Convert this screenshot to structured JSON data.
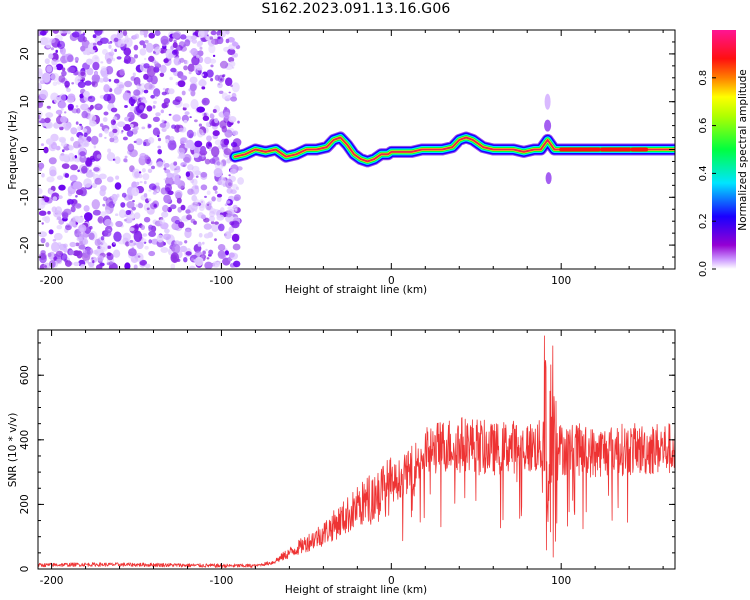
{
  "figure_title": "S162.2023.091.13.16.G06",
  "colors": {
    "snr_line": "#ee3333",
    "ridge_core": "#e8294a",
    "noise": "#8a2be2",
    "axis": "#000000"
  },
  "chart_data": [
    {
      "type": "heatmap",
      "title": "",
      "xlabel": "Height of straight line (km)",
      "ylabel": "Frequency (Hz)",
      "xlim": [
        -208,
        167
      ],
      "ylim": [
        -25,
        25
      ],
      "xticks": [
        -200,
        -100,
        0,
        100
      ],
      "yticks": [
        -20,
        -10,
        0,
        10,
        20
      ],
      "noise_region_x": [
        -208,
        -90
      ],
      "ridge": {
        "x": [
          -92,
          -86,
          -80,
          -74,
          -68,
          -62,
          -56,
          -50,
          -44,
          -38,
          -34,
          -30,
          -26,
          -22,
          -18,
          -14,
          -10,
          -6,
          -2,
          0,
          6,
          12,
          18,
          24,
          30,
          36,
          40,
          44,
          48,
          54,
          60,
          66,
          72,
          78,
          84,
          88,
          92,
          96,
          100,
          120,
          140,
          167
        ],
        "y": [
          -1.5,
          -1,
          0,
          -0.5,
          0,
          -1.5,
          -1,
          0,
          0,
          0.5,
          2,
          2.5,
          1,
          -1,
          -2,
          -2.5,
          -2,
          -1,
          -1,
          -0.5,
          -0.5,
          -0.5,
          0,
          0,
          0,
          0.5,
          2,
          2.5,
          2,
          0.5,
          0,
          0,
          0,
          -0.5,
          0,
          0,
          2,
          0,
          0,
          0,
          0,
          0
        ]
      },
      "colorbar": {
        "label": "Normalized spectral amplitude",
        "range": [
          0,
          1
        ],
        "ticks": [
          "0.0",
          "0.2",
          "0.4",
          "0.6",
          "0.8"
        ],
        "tick_values": [
          0.0,
          0.2,
          0.4,
          0.6,
          0.8
        ],
        "colormap": [
          "#ffffff",
          "#9400d3",
          "#0000ff",
          "#00ffff",
          "#00ff00",
          "#ffff00",
          "#ff0000",
          "#ff1493"
        ]
      }
    },
    {
      "type": "line",
      "title": "",
      "xlabel": "Height of straight line (km)",
      "ylabel": "SNR (10 * v/v)",
      "xlim": [
        -208,
        167
      ],
      "ylim": [
        0,
        740
      ],
      "xticks": [
        -200,
        -100,
        0,
        100
      ],
      "yticks": [
        0,
        200,
        400,
        600
      ],
      "envelope": {
        "x": [
          -208,
          -180,
          -140,
          -100,
          -80,
          -70,
          -60,
          -50,
          -40,
          -30,
          -20,
          -10,
          0,
          10,
          20,
          30,
          40,
          50,
          60,
          70,
          80,
          90,
          95,
          100,
          110,
          120,
          130,
          140,
          150,
          160,
          167
        ],
        "y": [
          12,
          14,
          13,
          10,
          10,
          20,
          50,
          80,
          110,
          150,
          190,
          230,
          260,
          300,
          360,
          380,
          390,
          385,
          370,
          380,
          375,
          380,
          390,
          370,
          370,
          360,
          370,
          370,
          370,
          375,
          370
        ]
      },
      "spike": {
        "x": 94,
        "max": 740,
        "min": 20
      }
    }
  ]
}
